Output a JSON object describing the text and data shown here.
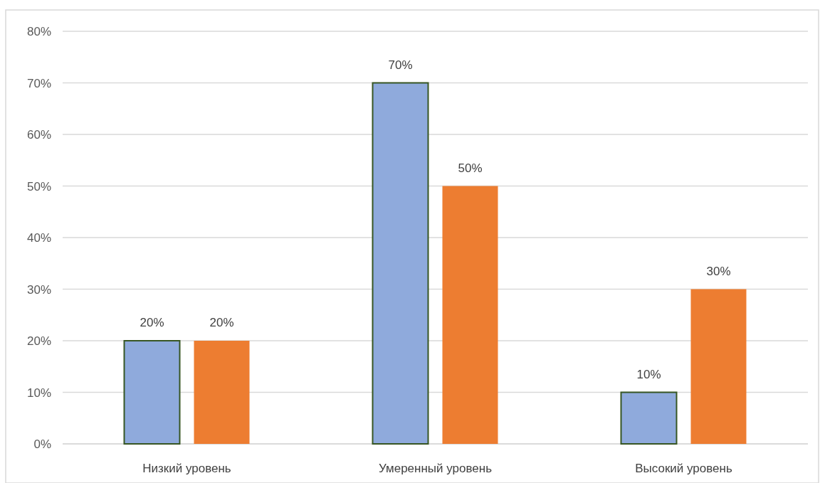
{
  "chart_data": {
    "type": "bar",
    "categories": [
      "Низкий уровень",
      "Умеренный уровень",
      "Высокий уровень"
    ],
    "series": [
      {
        "color": "#8faadc",
        "values": [
          20,
          70,
          10
        ],
        "value_labels": [
          "20%",
          "70%",
          "10%"
        ]
      },
      {
        "color": "#ed7d31",
        "values": [
          20,
          50,
          30
        ],
        "value_labels": [
          "20%",
          "50%",
          "30%"
        ]
      }
    ],
    "ylim": [
      0,
      80
    ],
    "yticks": [
      {
        "value": 0,
        "label": "0%"
      },
      {
        "value": 10,
        "label": "10%"
      },
      {
        "value": 20,
        "label": "20%"
      },
      {
        "value": 30,
        "label": "30%"
      },
      {
        "value": 40,
        "label": "40%"
      },
      {
        "value": 50,
        "label": "50%"
      },
      {
        "value": 60,
        "label": "60%"
      },
      {
        "value": 70,
        "label": "70%"
      },
      {
        "value": 80,
        "label": "80%"
      }
    ],
    "grid": "y"
  }
}
